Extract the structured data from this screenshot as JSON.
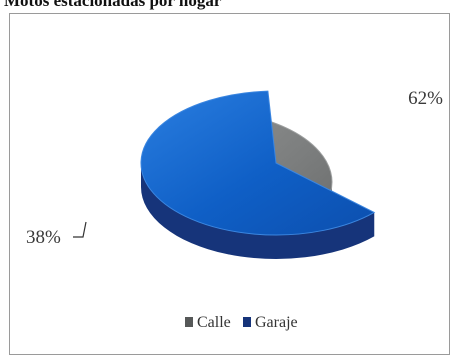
{
  "chart_data": {
    "type": "pie",
    "title": "Motos estacionadas por hogar",
    "categories": [
      "Calle",
      "Garaje"
    ],
    "values": [
      38,
      62
    ],
    "unit": "%",
    "data_labels": [
      "38%",
      "62%"
    ],
    "legend": {
      "placement": "bottom",
      "entries": [
        "Calle",
        "Garaje"
      ]
    },
    "colors": {
      "Calle": {
        "top": "#7b7d7d",
        "side": "#565858",
        "rim": "#9c9e9e"
      },
      "Garaje": {
        "top": "#0f5fc6",
        "side": "#16347a",
        "rim": "#3b86e0"
      }
    },
    "style": "3d-exploded"
  }
}
